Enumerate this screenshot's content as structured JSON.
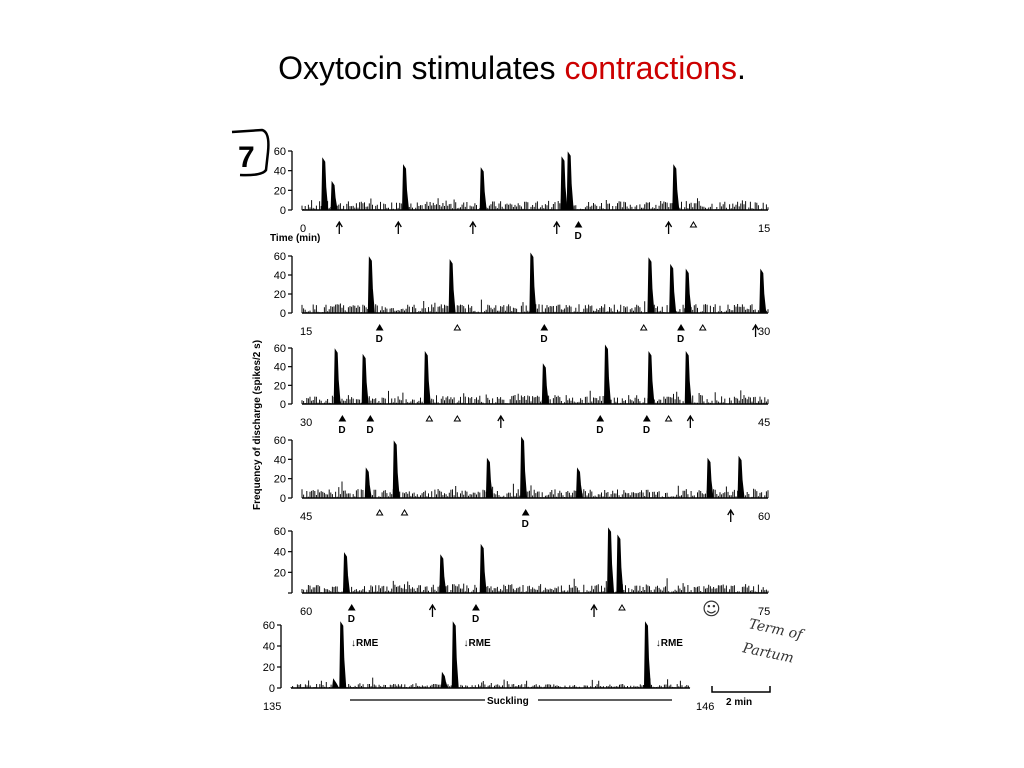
{
  "title": {
    "text_before": "Oxytocin stimulates ",
    "text_accent": "contractions",
    "text_after": ".",
    "accent_color": "#cc0000"
  },
  "figure": {
    "panel_number": "7",
    "ylabel": "Frequency of discharge (spikes/2 s)",
    "time_label": "Time (min)",
    "suckling_label": "Suckling",
    "scale_bar_label": "2 min",
    "handwritten_note": [
      "Term of",
      "Partum"
    ],
    "handwritten_symbol": "☺"
  },
  "chart_data": [
    {
      "type": "line",
      "x_range": [
        0,
        15
      ],
      "x_tick_labels": [
        "0",
        "15"
      ],
      "ylim": [
        0,
        60
      ],
      "y_ticks": [
        "0",
        "20",
        "40",
        "60"
      ],
      "peaks": [
        [
          0.7,
          52
        ],
        [
          1.0,
          28
        ],
        [
          3.3,
          45
        ],
        [
          5.8,
          42
        ],
        [
          8.4,
          53
        ],
        [
          8.6,
          58
        ],
        [
          12.0,
          45
        ]
      ],
      "markers": [
        {
          "x": 1.2,
          "kind": "arrow"
        },
        {
          "x": 3.1,
          "kind": "arrow"
        },
        {
          "x": 5.5,
          "kind": "arrow"
        },
        {
          "x": 8.2,
          "kind": "arrow"
        },
        {
          "x": 8.9,
          "kind": "D"
        },
        {
          "x": 11.8,
          "kind": "arrow"
        },
        {
          "x": 12.6,
          "kind": "triangle"
        }
      ]
    },
    {
      "type": "line",
      "x_range": [
        15,
        30
      ],
      "x_tick_labels": [
        "15",
        "30"
      ],
      "ylim": [
        0,
        60
      ],
      "y_ticks": [
        "0",
        "20",
        "40",
        "60"
      ],
      "peaks": [
        [
          17.2,
          58
        ],
        [
          19.8,
          55
        ],
        [
          22.4,
          62
        ],
        [
          26.2,
          57
        ],
        [
          26.9,
          50
        ],
        [
          27.4,
          45
        ],
        [
          29.8,
          45
        ]
      ],
      "markers": [
        {
          "x": 17.5,
          "kind": "D"
        },
        {
          "x": 20.0,
          "kind": "triangle"
        },
        {
          "x": 22.8,
          "kind": "D"
        },
        {
          "x": 26.0,
          "kind": "triangle"
        },
        {
          "x": 27.2,
          "kind": "D"
        },
        {
          "x": 27.9,
          "kind": "triangle"
        },
        {
          "x": 29.6,
          "kind": "arrow"
        }
      ]
    },
    {
      "type": "line",
      "x_range": [
        30,
        45
      ],
      "x_tick_labels": [
        "30",
        "45"
      ],
      "ylim": [
        0,
        60
      ],
      "y_ticks": [
        "0",
        "20",
        "40",
        "60"
      ],
      "peaks": [
        [
          31.1,
          58
        ],
        [
          32.0,
          52
        ],
        [
          34.0,
          55
        ],
        [
          37.8,
          42
        ],
        [
          39.8,
          62
        ],
        [
          41.2,
          55
        ],
        [
          42.4,
          55
        ]
      ],
      "markers": [
        {
          "x": 31.3,
          "kind": "D"
        },
        {
          "x": 32.2,
          "kind": "D"
        },
        {
          "x": 34.1,
          "kind": "triangle"
        },
        {
          "x": 35.0,
          "kind": "triangle"
        },
        {
          "x": 36.4,
          "kind": "arrow"
        },
        {
          "x": 39.6,
          "kind": "D"
        },
        {
          "x": 41.1,
          "kind": "D"
        },
        {
          "x": 41.8,
          "kind": "triangle"
        },
        {
          "x": 42.5,
          "kind": "arrow"
        }
      ]
    },
    {
      "type": "line",
      "x_range": [
        45,
        60
      ],
      "x_tick_labels": [
        "45",
        "60"
      ],
      "ylim": [
        0,
        60
      ],
      "y_ticks": [
        "0",
        "20",
        "40",
        "60"
      ],
      "peaks": [
        [
          47.1,
          30
        ],
        [
          48.0,
          58
        ],
        [
          51.0,
          40
        ],
        [
          52.1,
          62
        ],
        [
          53.9,
          30
        ],
        [
          58.1,
          40
        ],
        [
          59.1,
          42
        ]
      ],
      "markers": [
        {
          "x": 47.5,
          "kind": "triangle"
        },
        {
          "x": 48.3,
          "kind": "triangle"
        },
        {
          "x": 52.2,
          "kind": "D"
        },
        {
          "x": 58.8,
          "kind": "arrow"
        }
      ]
    },
    {
      "type": "line",
      "x_range": [
        60,
        75
      ],
      "x_tick_labels": [
        "60",
        "75"
      ],
      "ylim": [
        0,
        60
      ],
      "y_ticks": [
        "20",
        "40",
        "60"
      ],
      "peaks": [
        [
          61.4,
          38
        ],
        [
          64.5,
          36
        ],
        [
          65.8,
          46
        ],
        [
          69.9,
          62
        ],
        [
          70.2,
          55
        ]
      ],
      "markers": [
        {
          "x": 61.6,
          "kind": "D"
        },
        {
          "x": 64.2,
          "kind": "arrow"
        },
        {
          "x": 65.6,
          "kind": "D"
        },
        {
          "x": 69.4,
          "kind": "arrow"
        },
        {
          "x": 70.3,
          "kind": "triangle"
        }
      ]
    },
    {
      "type": "line",
      "x_range": [
        135,
        146
      ],
      "x_tick_labels": [
        "135",
        "146"
      ],
      "ylim": [
        0,
        60
      ],
      "y_ticks": [
        "0",
        "20",
        "40",
        "60"
      ],
      "peaks": [
        [
          136.2,
          8
        ],
        [
          136.4,
          62
        ],
        [
          139.2,
          14
        ],
        [
          139.5,
          62
        ],
        [
          144.8,
          62
        ]
      ],
      "markers": [],
      "annotations": [
        {
          "x": 136.6,
          "text": "↓RME"
        },
        {
          "x": 139.7,
          "text": "↓RME"
        },
        {
          "x": 145.0,
          "text": "↓RME"
        }
      ]
    }
  ]
}
